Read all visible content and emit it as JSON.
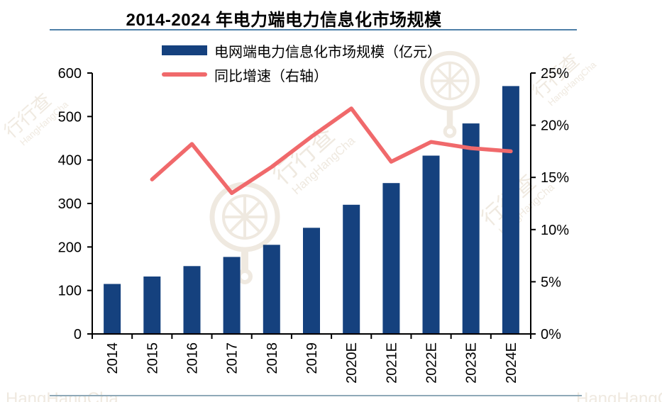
{
  "page": {
    "title": "2014-2024 年电力端电力信息化市场规模"
  },
  "legend": [
    {
      "label": "电网端电力信息化市场规模（亿元）",
      "swatch": "bar"
    },
    {
      "label": "同比增速（右轴）",
      "swatch": "line"
    }
  ],
  "chart_data": {
    "type": "bar",
    "title": "2014-2024 年电力端电力信息化市场规模",
    "categories": [
      "2014",
      "2015",
      "2016",
      "2017",
      "2018",
      "2019",
      "2020E",
      "2021E",
      "2022E",
      "2023E",
      "2024E"
    ],
    "series": [
      {
        "name": "电网端电力信息化市场规模（亿元）",
        "type": "bar",
        "axis": "left",
        "values": [
          115,
          132,
          156,
          177,
          205,
          244,
          297,
          347,
          410,
          484,
          570
        ]
      },
      {
        "name": "同比增速（右轴）",
        "type": "line",
        "axis": "right",
        "values_pct": [
          null,
          14.8,
          18.2,
          13.5,
          16.0,
          18.9,
          21.6,
          16.5,
          18.4,
          17.8,
          17.5
        ]
      }
    ],
    "left_axis": {
      "min": 0,
      "max": 600,
      "tick_values": [
        0,
        100,
        200,
        300,
        400,
        500,
        600
      ],
      "tick_labels": [
        "0",
        "100",
        "200",
        "300",
        "400",
        "500",
        "600"
      ]
    },
    "right_axis": {
      "min": 0,
      "max": 25,
      "tick_values": [
        0,
        5,
        10,
        15,
        20,
        25
      ],
      "tick_labels": [
        "0%",
        "5%",
        "10%",
        "15%",
        "20%",
        "25%"
      ]
    },
    "grid": false,
    "legend_position": "top-left"
  },
  "watermark": {
    "cn": "行行查",
    "en": "HangHangCha"
  },
  "colors": {
    "bar": "#15417E",
    "line": "#F0696B",
    "axis": "#000000",
    "rule_top": "#4E80A8",
    "rule_bottom": "#8FA9B8",
    "watermark": "#E2D7C6"
  }
}
